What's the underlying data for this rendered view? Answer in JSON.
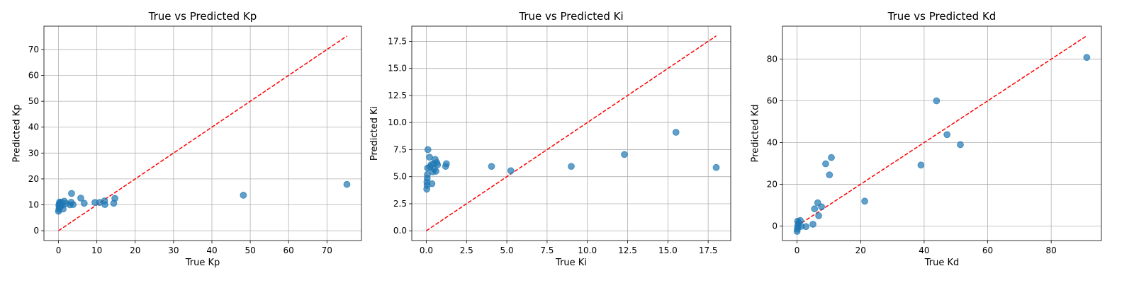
{
  "chart_data": [
    {
      "type": "scatter",
      "title": "True vs Predicted Kp",
      "xlabel": "True Kp",
      "ylabel": "Predicted Kp",
      "xlim": [
        -3.8,
        79
      ],
      "ylim": [
        -3.8,
        79
      ],
      "xticks": [
        0,
        10,
        20,
        30,
        40,
        50,
        60,
        70
      ],
      "yticks": [
        0,
        10,
        20,
        30,
        40,
        50,
        60,
        70
      ],
      "xtick_labels": [
        "0",
        "10",
        "20",
        "30",
        "40",
        "50",
        "60",
        "70"
      ],
      "ytick_labels": [
        "0",
        "10",
        "20",
        "30",
        "40",
        "50",
        "60",
        "70"
      ],
      "grid": true,
      "reference_line": {
        "from": [
          0,
          0
        ],
        "to": [
          75.2,
          75.2
        ],
        "color": "#ff0000",
        "style": "dashed"
      },
      "color": "#1f77b4",
      "points": [
        {
          "x": 0.0,
          "y": 7.5
        },
        {
          "x": 0.1,
          "y": 8.2
        },
        {
          "x": 0.2,
          "y": 9.0
        },
        {
          "x": 0.1,
          "y": 9.8
        },
        {
          "x": 0.2,
          "y": 10.4
        },
        {
          "x": 0.3,
          "y": 11.1
        },
        {
          "x": 0.4,
          "y": 10.6
        },
        {
          "x": 0.5,
          "y": 9.4
        },
        {
          "x": 0.6,
          "y": 10.2
        },
        {
          "x": 0.8,
          "y": 11.0
        },
        {
          "x": 1.0,
          "y": 9.9
        },
        {
          "x": 1.2,
          "y": 8.4
        },
        {
          "x": 1.5,
          "y": 11.4
        },
        {
          "x": 2.0,
          "y": 10.5
        },
        {
          "x": 3.0,
          "y": 10.0
        },
        {
          "x": 3.3,
          "y": 11.0
        },
        {
          "x": 3.4,
          "y": 14.4
        },
        {
          "x": 3.8,
          "y": 10.1
        },
        {
          "x": 5.8,
          "y": 12.6
        },
        {
          "x": 6.7,
          "y": 10.6
        },
        {
          "x": 9.5,
          "y": 10.9
        },
        {
          "x": 10.7,
          "y": 10.9
        },
        {
          "x": 12.0,
          "y": 11.5
        },
        {
          "x": 12.1,
          "y": 10.1
        },
        {
          "x": 14.4,
          "y": 10.6
        },
        {
          "x": 14.7,
          "y": 12.5
        },
        {
          "x": 48.2,
          "y": 13.7
        },
        {
          "x": 75.2,
          "y": 17.9
        }
      ]
    },
    {
      "type": "scatter",
      "title": "True vs Predicted Ki",
      "xlabel": "True Ki",
      "ylabel": "Predicted Ki",
      "xlim": [
        -0.9,
        18.9
      ],
      "ylim": [
        -0.9,
        18.9
      ],
      "xticks": [
        0,
        2.5,
        5,
        7.5,
        10,
        12.5,
        15,
        17.5
      ],
      "yticks": [
        0,
        2.5,
        5,
        7.5,
        10,
        12.5,
        15,
        17.5
      ],
      "xtick_labels": [
        "0.0",
        "2.5",
        "5.0",
        "7.5",
        "10.0",
        "12.5",
        "15.0",
        "17.5"
      ],
      "ytick_labels": [
        "0.0",
        "2.5",
        "5.0",
        "7.5",
        "10.0",
        "12.5",
        "15.0",
        "17.5"
      ],
      "grid": true,
      "reference_line": {
        "from": [
          0,
          0
        ],
        "to": [
          18.0,
          18.0
        ],
        "color": "#ff0000",
        "style": "dashed"
      },
      "color": "#1f77b4",
      "points": [
        {
          "x": 0.03,
          "y": 3.85
        },
        {
          "x": 0.05,
          "y": 4.2
        },
        {
          "x": 0.04,
          "y": 4.5
        },
        {
          "x": 0.06,
          "y": 4.85
        },
        {
          "x": 0.07,
          "y": 5.2
        },
        {
          "x": 0.08,
          "y": 5.8
        },
        {
          "x": 0.1,
          "y": 7.5
        },
        {
          "x": 0.2,
          "y": 6.8
        },
        {
          "x": 0.22,
          "y": 5.9
        },
        {
          "x": 0.3,
          "y": 6.1
        },
        {
          "x": 0.35,
          "y": 4.35
        },
        {
          "x": 0.4,
          "y": 5.45
        },
        {
          "x": 0.45,
          "y": 6.2
        },
        {
          "x": 0.5,
          "y": 5.7
        },
        {
          "x": 0.55,
          "y": 6.6
        },
        {
          "x": 0.6,
          "y": 5.5
        },
        {
          "x": 0.65,
          "y": 6.3
        },
        {
          "x": 0.7,
          "y": 6.1
        },
        {
          "x": 1.2,
          "y": 5.95
        },
        {
          "x": 1.25,
          "y": 6.2
        },
        {
          "x": 4.05,
          "y": 5.95
        },
        {
          "x": 5.25,
          "y": 5.55
        },
        {
          "x": 9.0,
          "y": 5.95
        },
        {
          "x": 12.3,
          "y": 7.05
        },
        {
          "x": 15.5,
          "y": 9.1
        },
        {
          "x": 18.0,
          "y": 5.85
        }
      ]
    },
    {
      "type": "scatter",
      "title": "True vs Predicted Kd",
      "xlabel": "True Kd",
      "ylabel": "Predicted Kd",
      "xlim": [
        -4.6,
        95.8
      ],
      "ylim": [
        -7.0,
        95.8
      ],
      "xticks": [
        0,
        20,
        40,
        60,
        80
      ],
      "yticks": [
        0,
        20,
        40,
        60,
        80
      ],
      "xtick_labels": [
        "0",
        "20",
        "40",
        "60",
        "80"
      ],
      "ytick_labels": [
        "0",
        "20",
        "40",
        "60",
        "80"
      ],
      "grid": true,
      "reference_line": {
        "from": [
          0,
          0
        ],
        "to": [
          91.2,
          91.2
        ],
        "color": "#ff0000",
        "style": "dashed"
      },
      "color": "#1f77b4",
      "points": [
        {
          "x": 0.0,
          "y": -2.6
        },
        {
          "x": 0.1,
          "y": -1.5
        },
        {
          "x": 0.2,
          "y": -0.5
        },
        {
          "x": 0.3,
          "y": 0.5
        },
        {
          "x": 0.5,
          "y": 1.5
        },
        {
          "x": 0.2,
          "y": 2.3
        },
        {
          "x": 1.0,
          "y": 2.6
        },
        {
          "x": 1.3,
          "y": -0.2
        },
        {
          "x": 2.8,
          "y": -0.3
        },
        {
          "x": 5.0,
          "y": 0.8
        },
        {
          "x": 5.5,
          "y": 8.2
        },
        {
          "x": 6.5,
          "y": 11.1
        },
        {
          "x": 6.8,
          "y": 4.9
        },
        {
          "x": 7.7,
          "y": 9.2
        },
        {
          "x": 9.0,
          "y": 29.8
        },
        {
          "x": 10.2,
          "y": 24.5
        },
        {
          "x": 10.8,
          "y": 32.8
        },
        {
          "x": 21.3,
          "y": 11.9
        },
        {
          "x": 39.0,
          "y": 29.2
        },
        {
          "x": 43.9,
          "y": 60.0
        },
        {
          "x": 47.2,
          "y": 43.8
        },
        {
          "x": 51.4,
          "y": 39.0
        },
        {
          "x": 91.2,
          "y": 80.8
        }
      ]
    }
  ]
}
